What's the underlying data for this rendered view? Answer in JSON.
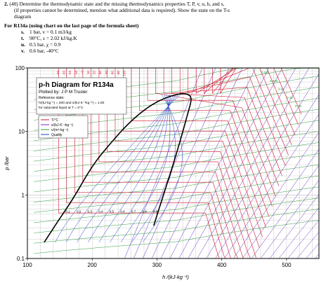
{
  "question": {
    "number": "2.",
    "points": "(40)",
    "line1": "Determine the thermodynamic state and the missing thermodynamics properties T, P, v, u, h, and s,",
    "line2": "(if properties cannot be determined, mention what additional data is required). Show the state on the T-s",
    "line3": "diagram",
    "header": "For R134a (using chart on the last page of the formula sheet)",
    "items": [
      {
        "label": "s.",
        "text": "1 bar, v = 0.1 m3/kg"
      },
      {
        "label": "t.",
        "text": "90°C, s = 2.02 kJ/kg.K"
      },
      {
        "label": "u.",
        "text": "0.5 bar, χ = 0.9"
      },
      {
        "label": "v.",
        "text": "0.6 bar, -40°C"
      }
    ]
  },
  "chart_data": {
    "type": "line",
    "title": "p-h Diagram for R134a",
    "plotted_by": "Plotted by: J P M Trusler",
    "reference_state": "Reference state:",
    "reference_line1": "h/(kJ·kg⁻¹) = 200 and s/(kJ·K⁻¹kg⁻¹) = 1.00",
    "reference_line2": "for saturated liquid at T = 0°C",
    "xlabel": "h /(kJ·kg⁻¹)",
    "ylabel": "p /bar",
    "x_scale": "linear",
    "y_scale": "log",
    "xlim": [
      100,
      550
    ],
    "ylim": [
      0.1,
      100
    ],
    "x_ticks": [
      "100",
      "200",
      "300",
      "400",
      "500"
    ],
    "y_ticks": [
      "0.1",
      "1",
      "10",
      "100"
    ],
    "legend": [
      {
        "name": "T/°C",
        "color": "#d0142c"
      },
      {
        "name": "s/(kJ·K⁻¹kg⁻¹)",
        "color": "#6a2fc0"
      },
      {
        "name": "v/(m³·kg⁻¹)",
        "color": "#2e9e3a"
      },
      {
        "name": "Quality",
        "color": "#1a44c8"
      }
    ],
    "colors": {
      "temperature": "#d0142c",
      "entropy": "#6a2fc0",
      "volume": "#2e9e3a",
      "quality": "#1a44c8",
      "dome": "#000000",
      "grid": "#bcbcbc"
    },
    "quality_labels": [
      "0.1",
      "0.2",
      "0.3",
      "0.4",
      "0.5",
      "0.6",
      "0.7",
      "0.8",
      "0.9"
    ],
    "volume_labels": [
      "0.002",
      "0.005",
      "0.01",
      "0.02",
      "0.05"
    ],
    "temperature_labels": [
      "-40",
      "-30",
      "-20",
      "-10",
      "0",
      "10",
      "20",
      "30",
      "40",
      "60",
      "80",
      "100"
    ],
    "saturation_dome": {
      "liquid": [
        {
          "h": 126,
          "p": 0.18
        },
        {
          "h": 148,
          "p": 0.4
        },
        {
          "h": 170,
          "p": 0.85
        },
        {
          "h": 200,
          "p": 2.9
        },
        {
          "h": 228,
          "p": 6.5
        },
        {
          "h": 256,
          "p": 13.5
        },
        {
          "h": 285,
          "p": 24
        },
        {
          "h": 312,
          "p": 34
        },
        {
          "h": 340,
          "p": 40.6
        }
      ],
      "vapor": [
        {
          "h": 340,
          "p": 40.6
        },
        {
          "h": 352,
          "p": 37
        },
        {
          "h": 353,
          "p": 30
        },
        {
          "h": 348,
          "p": 20
        },
        {
          "h": 340,
          "p": 10
        },
        {
          "h": 325,
          "p": 3
        },
        {
          "h": 303,
          "p": 0.6
        },
        {
          "h": 295,
          "p": 0.33
        }
      ]
    }
  }
}
